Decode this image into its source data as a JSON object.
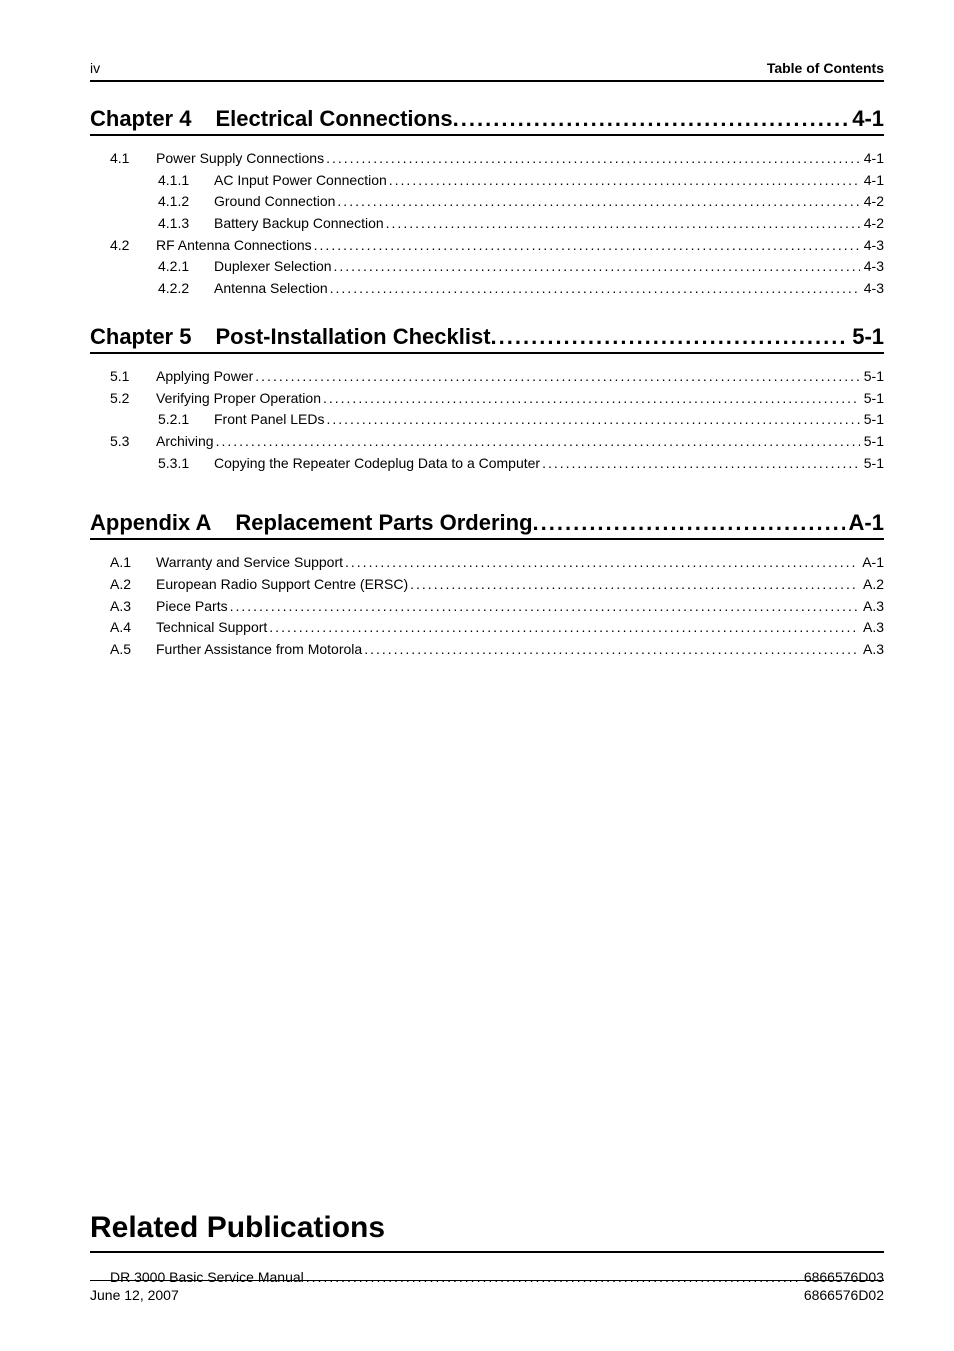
{
  "header": {
    "page_num": "iv",
    "title": "Table of Contents"
  },
  "chapters": [
    {
      "label": "Chapter 4",
      "title": "Electrical Connections",
      "page": "4-1",
      "entries": [
        {
          "lvl": 1,
          "num": "4.1",
          "title": "Power Supply Connections",
          "page": "4-1"
        },
        {
          "lvl": 2,
          "num": "4.1.1",
          "title": "AC Input Power Connection",
          "page": "4-1"
        },
        {
          "lvl": 2,
          "num": "4.1.2",
          "title": "Ground Connection",
          "page": "4-2"
        },
        {
          "lvl": 2,
          "num": "4.1.3",
          "title": "Battery Backup Connection",
          "page": "4-2"
        },
        {
          "lvl": 1,
          "num": "4.2",
          "title": "RF Antenna Connections",
          "page": "4-3"
        },
        {
          "lvl": 2,
          "num": "4.2.1",
          "title": "Duplexer Selection",
          "page": "4-3"
        },
        {
          "lvl": 2,
          "num": "4.2.2",
          "title": "Antenna Selection",
          "page": "4-3"
        }
      ]
    },
    {
      "label": "Chapter 5",
      "title": "Post-Installation Checklist",
      "page": "5-1",
      "entries": [
        {
          "lvl": 1,
          "num": "5.1",
          "title": "Applying Power",
          "page": "5-1"
        },
        {
          "lvl": 1,
          "num": "5.2",
          "title": "Verifying Proper Operation",
          "page": "5-1"
        },
        {
          "lvl": 2,
          "num": "5.2.1",
          "title": "Front Panel LEDs",
          "page": "5-1"
        },
        {
          "lvl": 1,
          "num": "5.3",
          "title": "Archiving",
          "page": "5-1"
        },
        {
          "lvl": 2,
          "num": "5.3.1",
          "title": "Copying the Repeater Codeplug Data to a Computer",
          "page": "5-1"
        }
      ]
    }
  ],
  "appendix": {
    "label": "Appendix A",
    "title": "Replacement Parts Ordering",
    "page": "A-1",
    "entries": [
      {
        "lvl": 1,
        "num": "A.1",
        "title": "Warranty and Service Support",
        "page": "A-1"
      },
      {
        "lvl": 1,
        "num": "A.2",
        "title": "European Radio Support Centre (ERSC)",
        "page": "A.2"
      },
      {
        "lvl": 1,
        "num": "A.3",
        "title": "Piece Parts",
        "page": "A.3"
      },
      {
        "lvl": 1,
        "num": "A.4",
        "title": "Technical Support",
        "page": "A.3"
      },
      {
        "lvl": 1,
        "num": "A.5",
        "title": "Further Assistance from Motorola",
        "page": "A.3"
      }
    ]
  },
  "related": {
    "heading": "Related Publications",
    "entries": [
      {
        "title": "DR 3000 Basic Service Manual",
        "page": "6866576D03"
      }
    ]
  },
  "footer": {
    "left": "June 12, 2007",
    "right": "6866576D02"
  }
}
